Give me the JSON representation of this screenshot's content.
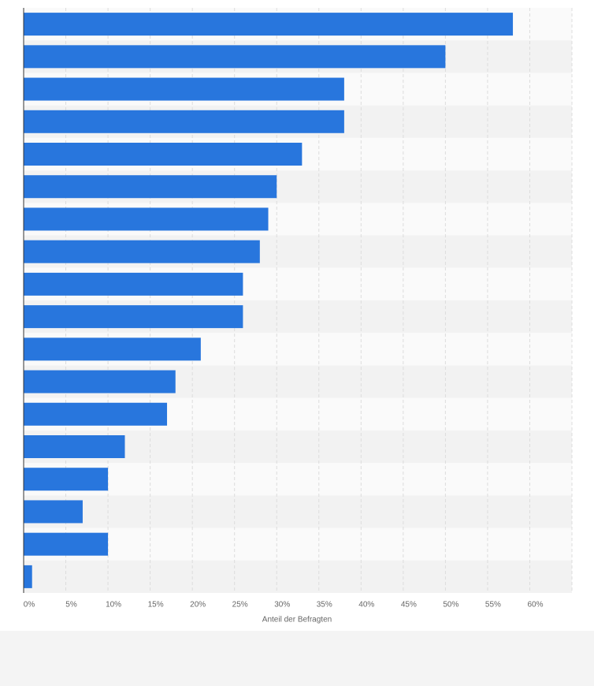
{
  "chart_data": {
    "type": "bar",
    "orientation": "horizontal",
    "categories": [
      null,
      null,
      null,
      null,
      null,
      null,
      null,
      null,
      null,
      null,
      null,
      null,
      null,
      null,
      null,
      null,
      null,
      null
    ],
    "values": [
      58,
      50,
      38,
      38,
      33,
      30,
      29,
      28,
      26,
      26,
      21,
      18,
      17,
      12,
      10,
      7,
      10,
      1
    ],
    "color": "#2876dd",
    "xlabel": "Anteil der Befragten",
    "xlim": [
      0,
      65
    ],
    "xticks": [
      {
        "value": 0,
        "label": "0%"
      },
      {
        "value": 5,
        "label": "5%"
      },
      {
        "value": 10,
        "label": "10%"
      },
      {
        "value": 15,
        "label": "15%"
      },
      {
        "value": 20,
        "label": "20%"
      },
      {
        "value": 25,
        "label": "25%"
      },
      {
        "value": 30,
        "label": "30%"
      },
      {
        "value": 35,
        "label": "35%"
      },
      {
        "value": 40,
        "label": "40%"
      },
      {
        "value": 45,
        "label": "45%"
      },
      {
        "value": 50,
        "label": "50%"
      },
      {
        "value": 55,
        "label": "55%"
      },
      {
        "value": 60,
        "label": "60%"
      }
    ],
    "grid": true
  }
}
